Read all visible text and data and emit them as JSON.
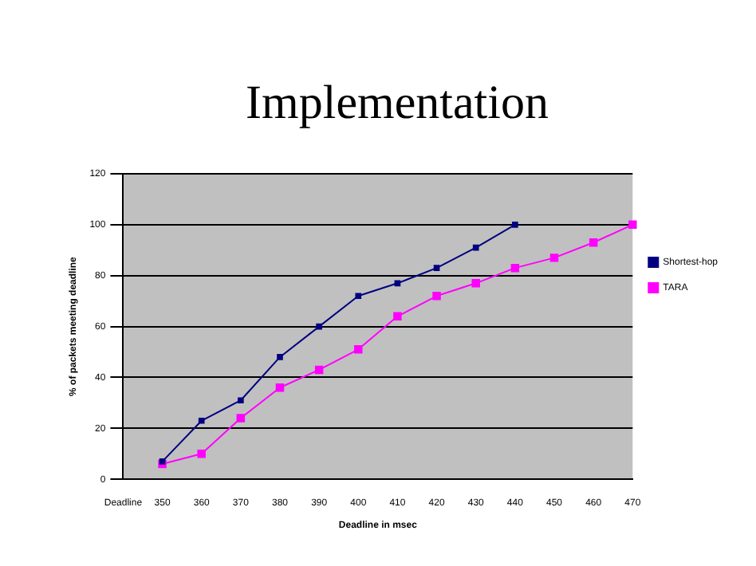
{
  "chart_data": {
    "type": "line",
    "title": "Implementation",
    "xlabel": "Deadline in msec",
    "ylabel": "% of packets meeting deadline",
    "categories": [
      "Deadline",
      "350",
      "360",
      "370",
      "380",
      "390",
      "400",
      "410",
      "420",
      "430",
      "440",
      "450",
      "460",
      "470"
    ],
    "series": [
      {
        "name": "Shortest-hop",
        "color": "#000080",
        "values": [
          null,
          7,
          23,
          31,
          48,
          60,
          72,
          77,
          83,
          91,
          100,
          null,
          null,
          null
        ]
      },
      {
        "name": "TARA",
        "color": "#ff00ff",
        "values": [
          null,
          6,
          10,
          24,
          36,
          43,
          51,
          64,
          72,
          77,
          83,
          87,
          93,
          100
        ]
      }
    ],
    "ylim": [
      0,
      120
    ],
    "yticks": [
      0,
      20,
      40,
      60,
      80,
      100,
      120
    ],
    "grid": "y",
    "legend": "right",
    "marker": "square",
    "line_style": "solid"
  }
}
